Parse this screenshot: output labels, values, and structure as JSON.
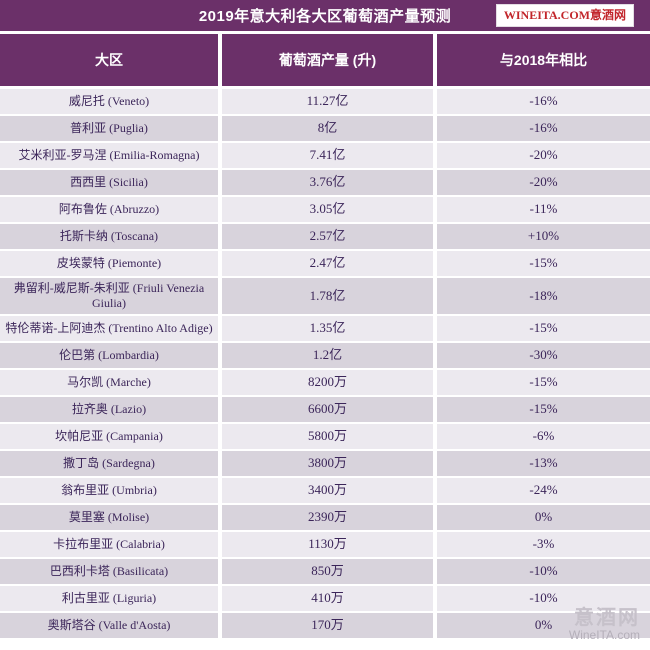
{
  "header": {
    "title": "2019年意大利各大区葡萄酒产量预测",
    "logo_text": "WINEITA.COM意酒网"
  },
  "watermark": {
    "cn": "意酒网",
    "en": "WineITA.com"
  },
  "colors": {
    "header_purple": "#6B3069",
    "row_light": "#ECE9EF",
    "row_dark": "#D8D3DC",
    "row_text": "#3B2559",
    "logo_red": "#C2262B",
    "header_text": "#FFFFFF"
  },
  "chart_data": {
    "type": "table",
    "title": "2019年意大利各大区葡萄酒产量预测",
    "columns": [
      "大区",
      "葡萄酒产量 (升)",
      "与2018年相比"
    ],
    "rows": [
      {
        "region": "威尼托 (Veneto)",
        "production": "11.27亿",
        "change": "-16%",
        "production_liters": 1127000000,
        "change_pct": -16
      },
      {
        "region": "普利亚 (Puglia)",
        "production": "8亿",
        "change": "-16%",
        "production_liters": 800000000,
        "change_pct": -16
      },
      {
        "region": "艾米利亚-罗马涅 (Emilia-Romagna)",
        "production": "7.41亿",
        "change": "-20%",
        "production_liters": 741000000,
        "change_pct": -20
      },
      {
        "region": "西西里 (Sicilia)",
        "production": "3.76亿",
        "change": "-20%",
        "production_liters": 376000000,
        "change_pct": -20
      },
      {
        "region": "阿布鲁佐 (Abruzzo)",
        "production": "3.05亿",
        "change": "-11%",
        "production_liters": 305000000,
        "change_pct": -11
      },
      {
        "region": "托斯卡纳 (Toscana)",
        "production": "2.57亿",
        "change": "+10%",
        "production_liters": 257000000,
        "change_pct": 10
      },
      {
        "region": "皮埃蒙特 (Piemonte)",
        "production": "2.47亿",
        "change": "-15%",
        "production_liters": 247000000,
        "change_pct": -15
      },
      {
        "region": "弗留利-威尼斯-朱利亚 (Friuli Venezia Giulia)",
        "production": "1.78亿",
        "change": "-18%",
        "production_liters": 178000000,
        "change_pct": -18
      },
      {
        "region": "特伦蒂诺-上阿迪杰 (Trentino Alto Adige)",
        "production": "1.35亿",
        "change": "-15%",
        "production_liters": 135000000,
        "change_pct": -15
      },
      {
        "region": "伦巴第 (Lombardia)",
        "production": "1.2亿",
        "change": "-30%",
        "production_liters": 120000000,
        "change_pct": -30
      },
      {
        "region": "马尔凯 (Marche)",
        "production": "8200万",
        "change": "-15%",
        "production_liters": 82000000,
        "change_pct": -15
      },
      {
        "region": "拉齐奥 (Lazio)",
        "production": "6600万",
        "change": "-15%",
        "production_liters": 66000000,
        "change_pct": -15
      },
      {
        "region": "坎帕尼亚 (Campania)",
        "production": "5800万",
        "change": "-6%",
        "production_liters": 58000000,
        "change_pct": -6
      },
      {
        "region": "撒丁岛 (Sardegna)",
        "production": "3800万",
        "change": "-13%",
        "production_liters": 38000000,
        "change_pct": -13
      },
      {
        "region": "翁布里亚 (Umbria)",
        "production": "3400万",
        "change": "-24%",
        "production_liters": 34000000,
        "change_pct": -24
      },
      {
        "region": "莫里塞 (Molise)",
        "production": "2390万",
        "change": "0%",
        "production_liters": 23900000,
        "change_pct": 0
      },
      {
        "region": "卡拉布里亚 (Calabria)",
        "production": "1130万",
        "change": "-3%",
        "production_liters": 11300000,
        "change_pct": -3
      },
      {
        "region": "巴西利卡塔 (Basilicata)",
        "production": "850万",
        "change": "-10%",
        "production_liters": 8500000,
        "change_pct": -10
      },
      {
        "region": "利古里亚 (Liguria)",
        "production": "410万",
        "change": "-10%",
        "production_liters": 4100000,
        "change_pct": -10
      },
      {
        "region": "奥斯塔谷 (Valle d'Aosta)",
        "production": "170万",
        "change": "0%",
        "production_liters": 1700000,
        "change_pct": 0
      }
    ]
  }
}
